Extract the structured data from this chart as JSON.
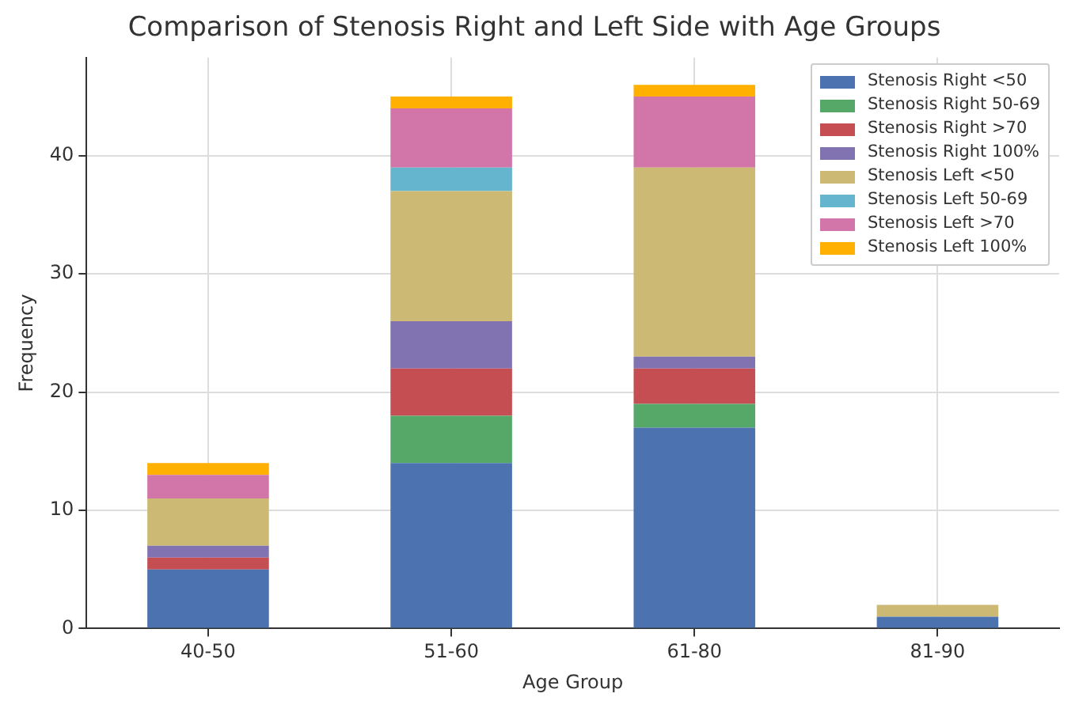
{
  "chart_data": {
    "type": "bar",
    "title": "Comparison of Stenosis Right and Left Side with Age Groups",
    "xlabel": "Age Group",
    "ylabel": "Frequency",
    "categories": [
      "40-50",
      "51-60",
      "61-80",
      "81-90"
    ],
    "stacked": true,
    "ylim": [
      0,
      48.3
    ],
    "yticks": [
      0,
      10,
      20,
      30,
      40
    ],
    "grid": true,
    "legend": "top right",
    "series": [
      {
        "name": "Stenosis Right <50",
        "color": "#4c72b0",
        "values": [
          5,
          14,
          17,
          1
        ]
      },
      {
        "name": "Stenosis Right 50-69",
        "color": "#55a868",
        "values": [
          0,
          4,
          2,
          0
        ]
      },
      {
        "name": "Stenosis Right >70",
        "color": "#c44e52",
        "values": [
          1,
          4,
          3,
          0
        ]
      },
      {
        "name": "Stenosis Right 100%",
        "color": "#8172b2",
        "values": [
          1,
          4,
          1,
          0
        ]
      },
      {
        "name": "Stenosis Left <50",
        "color": "#ccb974",
        "values": [
          4,
          11,
          16,
          1
        ]
      },
      {
        "name": "Stenosis Left 50-69",
        "color": "#64b5cd",
        "values": [
          0,
          2,
          0,
          0
        ]
      },
      {
        "name": "Stenosis Left >70",
        "color": "#d275a8",
        "values": [
          2,
          5,
          6,
          0
        ]
      },
      {
        "name": "Stenosis Left 100%",
        "color": "#ffb000",
        "values": [
          1,
          1,
          1,
          0
        ]
      }
    ]
  }
}
